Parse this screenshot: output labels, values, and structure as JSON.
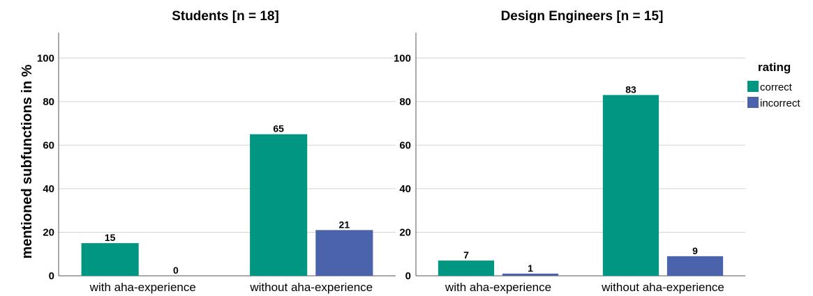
{
  "chart_data": {
    "type": "bar",
    "ylabel": "mentioned subfunctions in %",
    "ylim": [
      0,
      110
    ],
    "yticks": [
      "0",
      "20",
      "40",
      "60",
      "80",
      "100"
    ],
    "grid": true,
    "categories": [
      "with aha-experience",
      "without aha-experience"
    ],
    "legend": {
      "title": "rating",
      "placement": "right",
      "entries": [
        {
          "name": "correct",
          "color": "#009681"
        },
        {
          "name": "incorrect",
          "color": "#4a63aa"
        }
      ]
    },
    "panels": [
      {
        "title": "Students [n = 18]",
        "series": [
          {
            "name": "correct",
            "values": [
              15,
              65
            ]
          },
          {
            "name": "incorrect",
            "values": [
              0,
              21
            ]
          }
        ]
      },
      {
        "title": "Design Engineers [n = 15]",
        "series": [
          {
            "name": "correct",
            "values": [
              7,
              83
            ]
          },
          {
            "name": "incorrect",
            "values": [
              1,
              9
            ]
          }
        ]
      }
    ]
  }
}
